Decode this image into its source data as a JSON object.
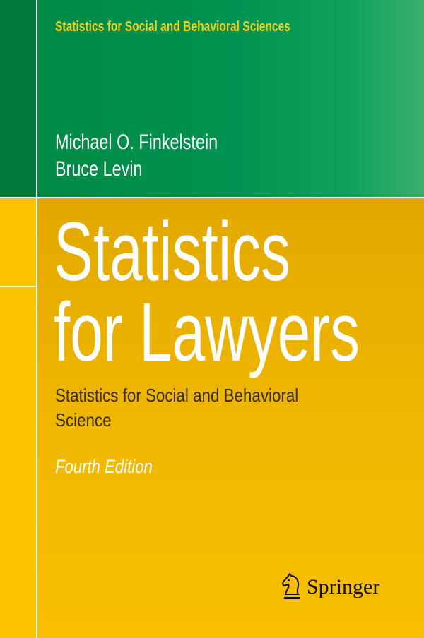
{
  "series": "Statistics for Social and Behavioral Sciences",
  "authors": [
    "Michael O. Finkelstein",
    "Bruce Levin"
  ],
  "title": [
    "Statistics",
    "for Lawyers"
  ],
  "subtitle": [
    "Statistics for Social and Behavioral",
    "Science"
  ],
  "edition": "Fourth Edition",
  "publisher": {
    "name": "Springer",
    "icon": "chess-knight-icon"
  },
  "colors": {
    "green": "#009250",
    "yellow": "#efb700",
    "series_text": "#f2cf1d"
  }
}
